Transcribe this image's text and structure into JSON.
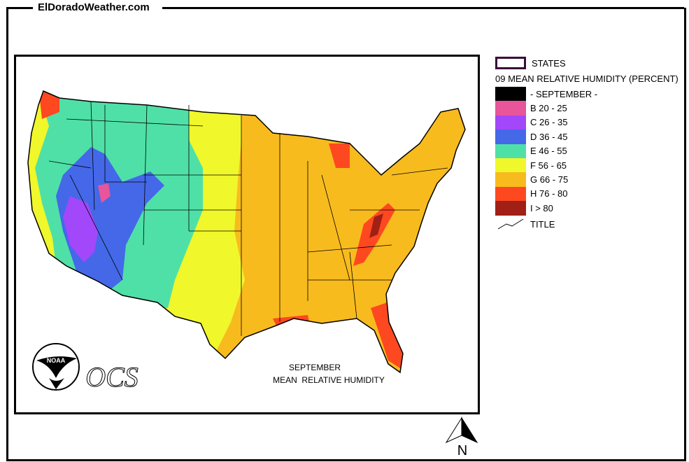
{
  "site_title": "ElDoradoWeather.com",
  "legend": {
    "states_label": "STATES",
    "title": "09 MEAN RELATIVE HUMIDITY (PERCENT)",
    "items": [
      {
        "label": "- SEPTEMBER -",
        "color": "#000000"
      },
      {
        "label": "B 20 - 25",
        "color": "#e8559a"
      },
      {
        "label": "C 26 - 35",
        "color": "#a347fa"
      },
      {
        "label": "D 36 - 45",
        "color": "#4468e8"
      },
      {
        "label": "E 46 - 55",
        "color": "#4fe0a8"
      },
      {
        "label": "F 56 - 65",
        "color": "#f0f72a"
      },
      {
        "label": "G 66 - 75",
        "color": "#f8bb1e"
      },
      {
        "label": "H 76 - 80",
        "color": "#fe4820"
      },
      {
        "label": "I > 80",
        "color": "#a02016"
      }
    ],
    "title_line_label": "TITLE"
  },
  "map": {
    "caption_line1": "SEPTEMBER",
    "caption_line2": "MEAN  RELATIVE HUMIDITY",
    "logo_text": "NOAA",
    "ocs_text": "OCS",
    "north_label": "N"
  }
}
